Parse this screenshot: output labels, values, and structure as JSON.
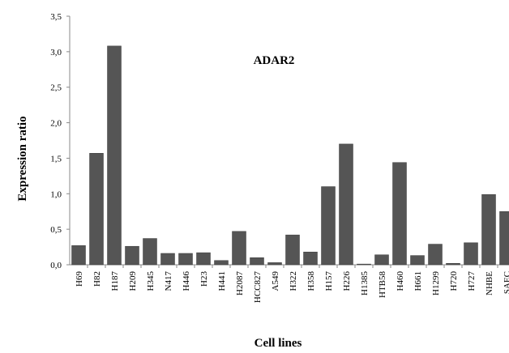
{
  "chart_data": {
    "type": "bar",
    "title": "ADAR2",
    "xlabel": "Cell lines",
    "ylabel": "Expression ratio",
    "ylim": [
      0,
      3.5
    ],
    "yticks": [
      "0,0",
      "0,5",
      "1,0",
      "1,5",
      "2,0",
      "2,5",
      "3,0",
      "3,5"
    ],
    "categories": [
      "H69",
      "H82",
      "H187",
      "H209",
      "H345",
      "N417",
      "H446",
      "H23",
      "H441",
      "H2087",
      "HCC827",
      "A549",
      "H322",
      "H358",
      "H157",
      "H226",
      "H1385",
      "HTB58",
      "H460",
      "H661",
      "H1299",
      "H720",
      "H727",
      "NHBE",
      "SAEC"
    ],
    "values": [
      0.27,
      1.57,
      3.08,
      0.26,
      0.37,
      0.16,
      0.16,
      0.17,
      0.06,
      0.47,
      0.1,
      0.03,
      0.42,
      0.18,
      1.1,
      1.7,
      0.01,
      0.14,
      1.44,
      0.13,
      0.29,
      0.02,
      0.31,
      0.99,
      0.75
    ],
    "bar_color": "#555555",
    "grid": false
  }
}
